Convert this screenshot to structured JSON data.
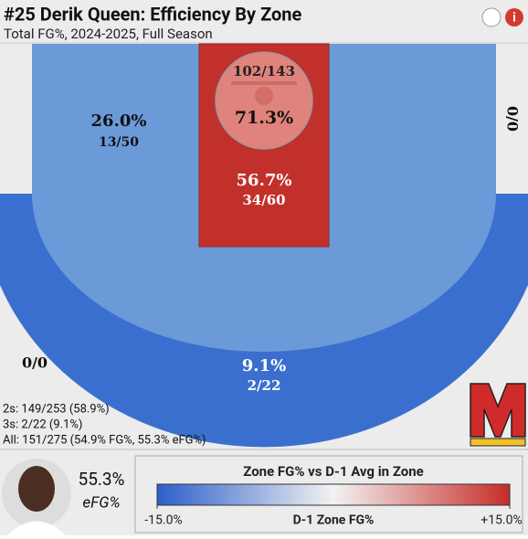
{
  "header": {
    "title": "#25 Derik Queen: Efficiency By Zone",
    "subtitle": "Total FG%, 2024-2025, Full Season"
  },
  "chart_data": {
    "type": "shot-zones",
    "values": [
      26.0,
      71.3,
      56.7,
      9.1
    ],
    "value_labels": [
      "26.0%",
      "71.3%",
      "56.7%",
      "9.1%"
    ],
    "counts": [
      "13/50",
      "102/143",
      "34/60",
      "2/22"
    ],
    "colors": [
      "#6b9ad9",
      "#e0837c",
      "#c2302b",
      "#3b6fcf"
    ],
    "empty_zones": [
      "0/0",
      "0/0"
    ]
  },
  "summary": [
    "2s: 149/253 (58.9%)",
    "3s: 2/22 (9.1%)",
    "All: 151/275 (54.9% FG%, 55.3% eFG%)"
  ],
  "player": {
    "efg": {
      "value": 55.3,
      "label": "55.3%"
    },
    "efg_label": "eFG%"
  },
  "colorbar": {
    "title": "Zone FG% vs D-1 Avg in Zone",
    "xlabel": "D-1 Zone FG%",
    "xlim": [
      -15,
      15
    ],
    "xticks": [
      {
        "value": -15,
        "label": "-15.0%"
      },
      {
        "value": 15,
        "label": "+15.0%"
      }
    ],
    "colorscale": [
      "#2c5fc9",
      "#f2f2f2",
      "#c62d28"
    ]
  }
}
